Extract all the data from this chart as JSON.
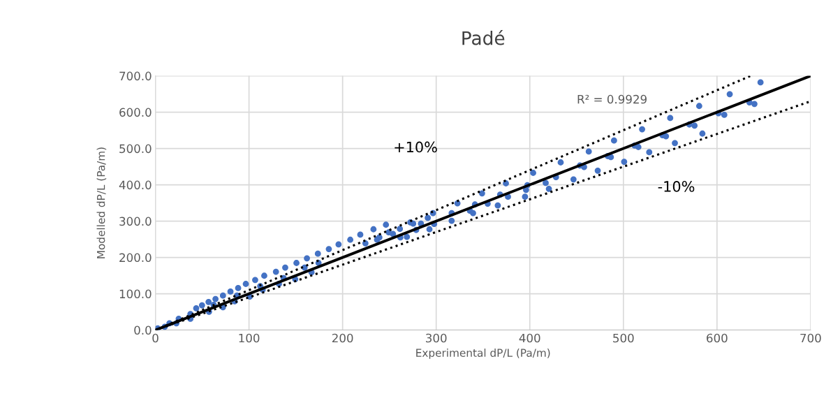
{
  "chart_data": {
    "type": "scatter",
    "title": "Padé",
    "xlabel": "Experimental dP/L (Pa/m)",
    "ylabel": "Modelled dP/L (Pa/m)",
    "xlim": [
      0,
      700
    ],
    "xticks": [
      0,
      100,
      200,
      300,
      400,
      500,
      600,
      700
    ],
    "ylim": [
      0,
      700
    ],
    "yticks": [
      {
        "value": 0,
        "label": "0.0"
      },
      {
        "value": 100,
        "label": "100.0"
      },
      {
        "value": 200,
        "label": "200.0"
      },
      {
        "value": 300,
        "label": "300.0"
      },
      {
        "value": 400,
        "label": "400.0"
      },
      {
        "value": 500,
        "label": "500.0"
      },
      {
        "value": 600,
        "label": "600.0"
      },
      {
        "value": 700,
        "label": "700.0"
      }
    ],
    "grid": true,
    "series": [
      {
        "color": "#4472c4",
        "marker": "circle",
        "x": [
          646.5,
          613.6,
          581,
          634.7,
          640,
          601.6,
          607.8,
          550,
          570.5,
          576,
          584.4,
          520,
          490,
          541.8,
          545.5,
          555,
          463,
          512,
          516,
          527.6,
          433,
          483.3,
          486.6,
          500.8,
          453.5,
          458,
          472.6,
          446.7,
          428,
          417,
          420.4,
          403.6,
          397.4,
          396,
          394.9,
          374.5,
          368.3,
          376.7,
          365.8,
          349,
          355,
          341.4,
          336,
          339.4,
          322.7,
          316.5,
          316.5,
          296.6,
          291,
          297.8,
          292.8,
          283.7,
          275.4,
          278.6,
          261.2,
          268.7,
          272.4,
          246.3,
          249.3,
          253.8,
          233,
          236.8,
          218.9,
          208.2,
          195.7,
          185.3,
          224.4,
          239.3,
          261.7,
          173.6,
          161.9,
          150.7,
          138.7,
          128.8,
          116.3,
          106.6,
          96.6,
          88.4,
          80.2,
          72.2,
          64.2,
          56.8,
          49.8,
          43.6,
          166.8,
          149.4,
          132,
          114.6,
          100.8,
          84.7,
          72.2,
          57.3,
          37.4,
          22.4,
          10,
          2.5,
          37.4,
          24.9,
          15,
          62.2,
          87.2,
          112,
          137,
          159.4,
          174.3
        ],
        "values": [
          682,
          649.6,
          617,
          627,
          622.6,
          597,
          592.6,
          584,
          566,
          563,
          541,
          553,
          522,
          536.4,
          533.7,
          515,
          491.6,
          508,
          504,
          489.7,
          461.7,
          479,
          476.3,
          463.5,
          453,
          449,
          439,
          415,
          421,
          405,
          389,
          432.8,
          399,
          386,
          367,
          404,
          373,
          367,
          343,
          376.5,
          348,
          345.8,
          328.6,
          322,
          349,
          322,
          301,
          322,
          309,
          292,
          277.5,
          293,
          293,
          275.6,
          278.7,
          256.4,
          296.7,
          290,
          269,
          264.7,
          277.5,
          248.7,
          262.7,
          248.7,
          235.9,
          223,
          239,
          255,
          255,
          210.3,
          197.5,
          184.7,
          172,
          160.5,
          149.6,
          138,
          127,
          115.7,
          106,
          95,
          85.6,
          77.3,
          68.3,
          60,
          159,
          140,
          127,
          111,
          92,
          79,
          63,
          50.5,
          31,
          18.6,
          9,
          4.4,
          44,
          31,
          18.6,
          69.6,
          95,
          121,
          143,
          172,
          184.7
        ]
      },
      {
        "type": "line",
        "color": "#000000",
        "line_style": "solid",
        "x": [
          0,
          700
        ],
        "values": [
          0,
          700
        ]
      },
      {
        "type": "line",
        "color": "#000000",
        "line_style": "dotted",
        "x": [
          0,
          636
        ],
        "values": [
          0,
          700
        ]
      },
      {
        "type": "line",
        "color": "#000000",
        "line_style": "dotted",
        "x": [
          0,
          700
        ],
        "values": [
          0,
          630
        ]
      }
    ],
    "annotations": [
      "R² = 0.9929",
      "+10%",
      "-10%"
    ]
  }
}
